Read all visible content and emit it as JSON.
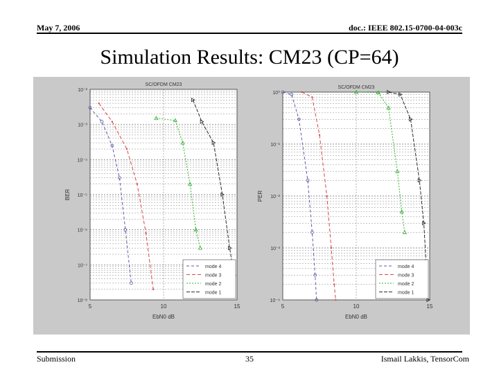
{
  "header": {
    "date": "May 7, 2006",
    "doc": "doc.: IEEE 802.15-0700-04-003c"
  },
  "title": "Simulation Results: CM23 (CP=64)",
  "footer": {
    "left": "Submission",
    "page": "35",
    "right": "Ismail Lakkis, TensorCom"
  },
  "colors": {
    "mode4": "#5a5aa8",
    "mode3": "#d94848",
    "mode2": "#2fb02f",
    "mode1": "#2a2a2a"
  },
  "chart_data": [
    {
      "type": "line",
      "title": "SC/OFDM CM23",
      "xlabel": "EbN0 dB",
      "ylabel": "BER",
      "xlim": [
        5,
        15
      ],
      "ylim": [
        1e-08,
        0.01
      ],
      "yscale": "log",
      "x_ticks": [
        "5",
        "10",
        "15"
      ],
      "y_ticks": [
        "10⁻²",
        "10⁻³",
        "10⁻⁴",
        "10⁻⁵",
        "10⁻⁶",
        "10⁻⁷",
        "10⁻⁸"
      ],
      "legend": "bottom-right",
      "series": [
        {
          "name": "mode 4",
          "points": [
            [
              5.0,
              0.003
            ],
            [
              5.8,
              0.0012
            ],
            [
              6.5,
              0.00025
            ],
            [
              7.0,
              3e-05
            ],
            [
              7.4,
              1e-06
            ],
            [
              7.8,
              3e-08
            ]
          ]
        },
        {
          "name": "mode 3",
          "points": [
            [
              5.6,
              0.004
            ],
            [
              6.5,
              0.0012
            ],
            [
              7.5,
              0.0002
            ],
            [
              8.2,
              2e-05
            ],
            [
              8.8,
              8e-07
            ],
            [
              9.3,
              2e-08
            ]
          ]
        },
        {
          "name": "mode 2",
          "points": [
            [
              9.5,
              0.0015
            ],
            [
              10.8,
              0.0013
            ],
            [
              11.3,
              0.0003
            ],
            [
              11.8,
              2e-05
            ],
            [
              12.2,
              1e-06
            ],
            [
              12.5,
              3e-07
            ]
          ]
        },
        {
          "name": "mode 1",
          "points": [
            [
              12.0,
              0.005
            ],
            [
              12.6,
              0.0012
            ],
            [
              13.4,
              0.0003
            ],
            [
              14.0,
              1e-05
            ],
            [
              14.5,
              3e-07
            ],
            [
              14.8,
              5e-08
            ]
          ]
        }
      ]
    },
    {
      "type": "line",
      "title": "SC/OFDM CM23",
      "xlabel": "EbN0 dB",
      "ylabel": "PER",
      "xlim": [
        5,
        15
      ],
      "ylim": [
        0.0001,
        1
      ],
      "yscale": "log",
      "x_ticks": [
        "5",
        "10",
        "15"
      ],
      "y_ticks": [
        "10⁰",
        "10⁻¹",
        "10⁻²",
        "10⁻³",
        "10⁻⁴"
      ],
      "legend": "bottom-right",
      "series": [
        {
          "name": "mode 4",
          "points": [
            [
              5.0,
              1.0
            ],
            [
              5.6,
              0.9
            ],
            [
              6.1,
              0.3
            ],
            [
              6.7,
              0.02
            ],
            [
              7.0,
              0.002
            ],
            [
              7.2,
              0.0003
            ],
            [
              7.3,
              0.0001
            ]
          ]
        },
        {
          "name": "mode 3",
          "points": [
            [
              6.3,
              1.0
            ],
            [
              7.0,
              0.8
            ],
            [
              7.5,
              0.15
            ],
            [
              8.0,
              0.01
            ],
            [
              8.3,
              0.001
            ],
            [
              8.5,
              0.0002
            ],
            [
              8.6,
              0.0001
            ]
          ]
        },
        {
          "name": "mode 2",
          "points": [
            [
              10.0,
              1.0
            ],
            [
              11.5,
              0.98
            ],
            [
              12.2,
              0.5
            ],
            [
              12.8,
              0.03
            ],
            [
              13.1,
              0.005
            ],
            [
              13.3,
              0.002
            ]
          ]
        },
        {
          "name": "mode 1",
          "points": [
            [
              12.2,
              1.0
            ],
            [
              13.0,
              0.9
            ],
            [
              13.7,
              0.3
            ],
            [
              14.3,
              0.02
            ],
            [
              14.6,
              0.003
            ],
            [
              14.9,
              0.0001
            ]
          ]
        }
      ]
    }
  ]
}
